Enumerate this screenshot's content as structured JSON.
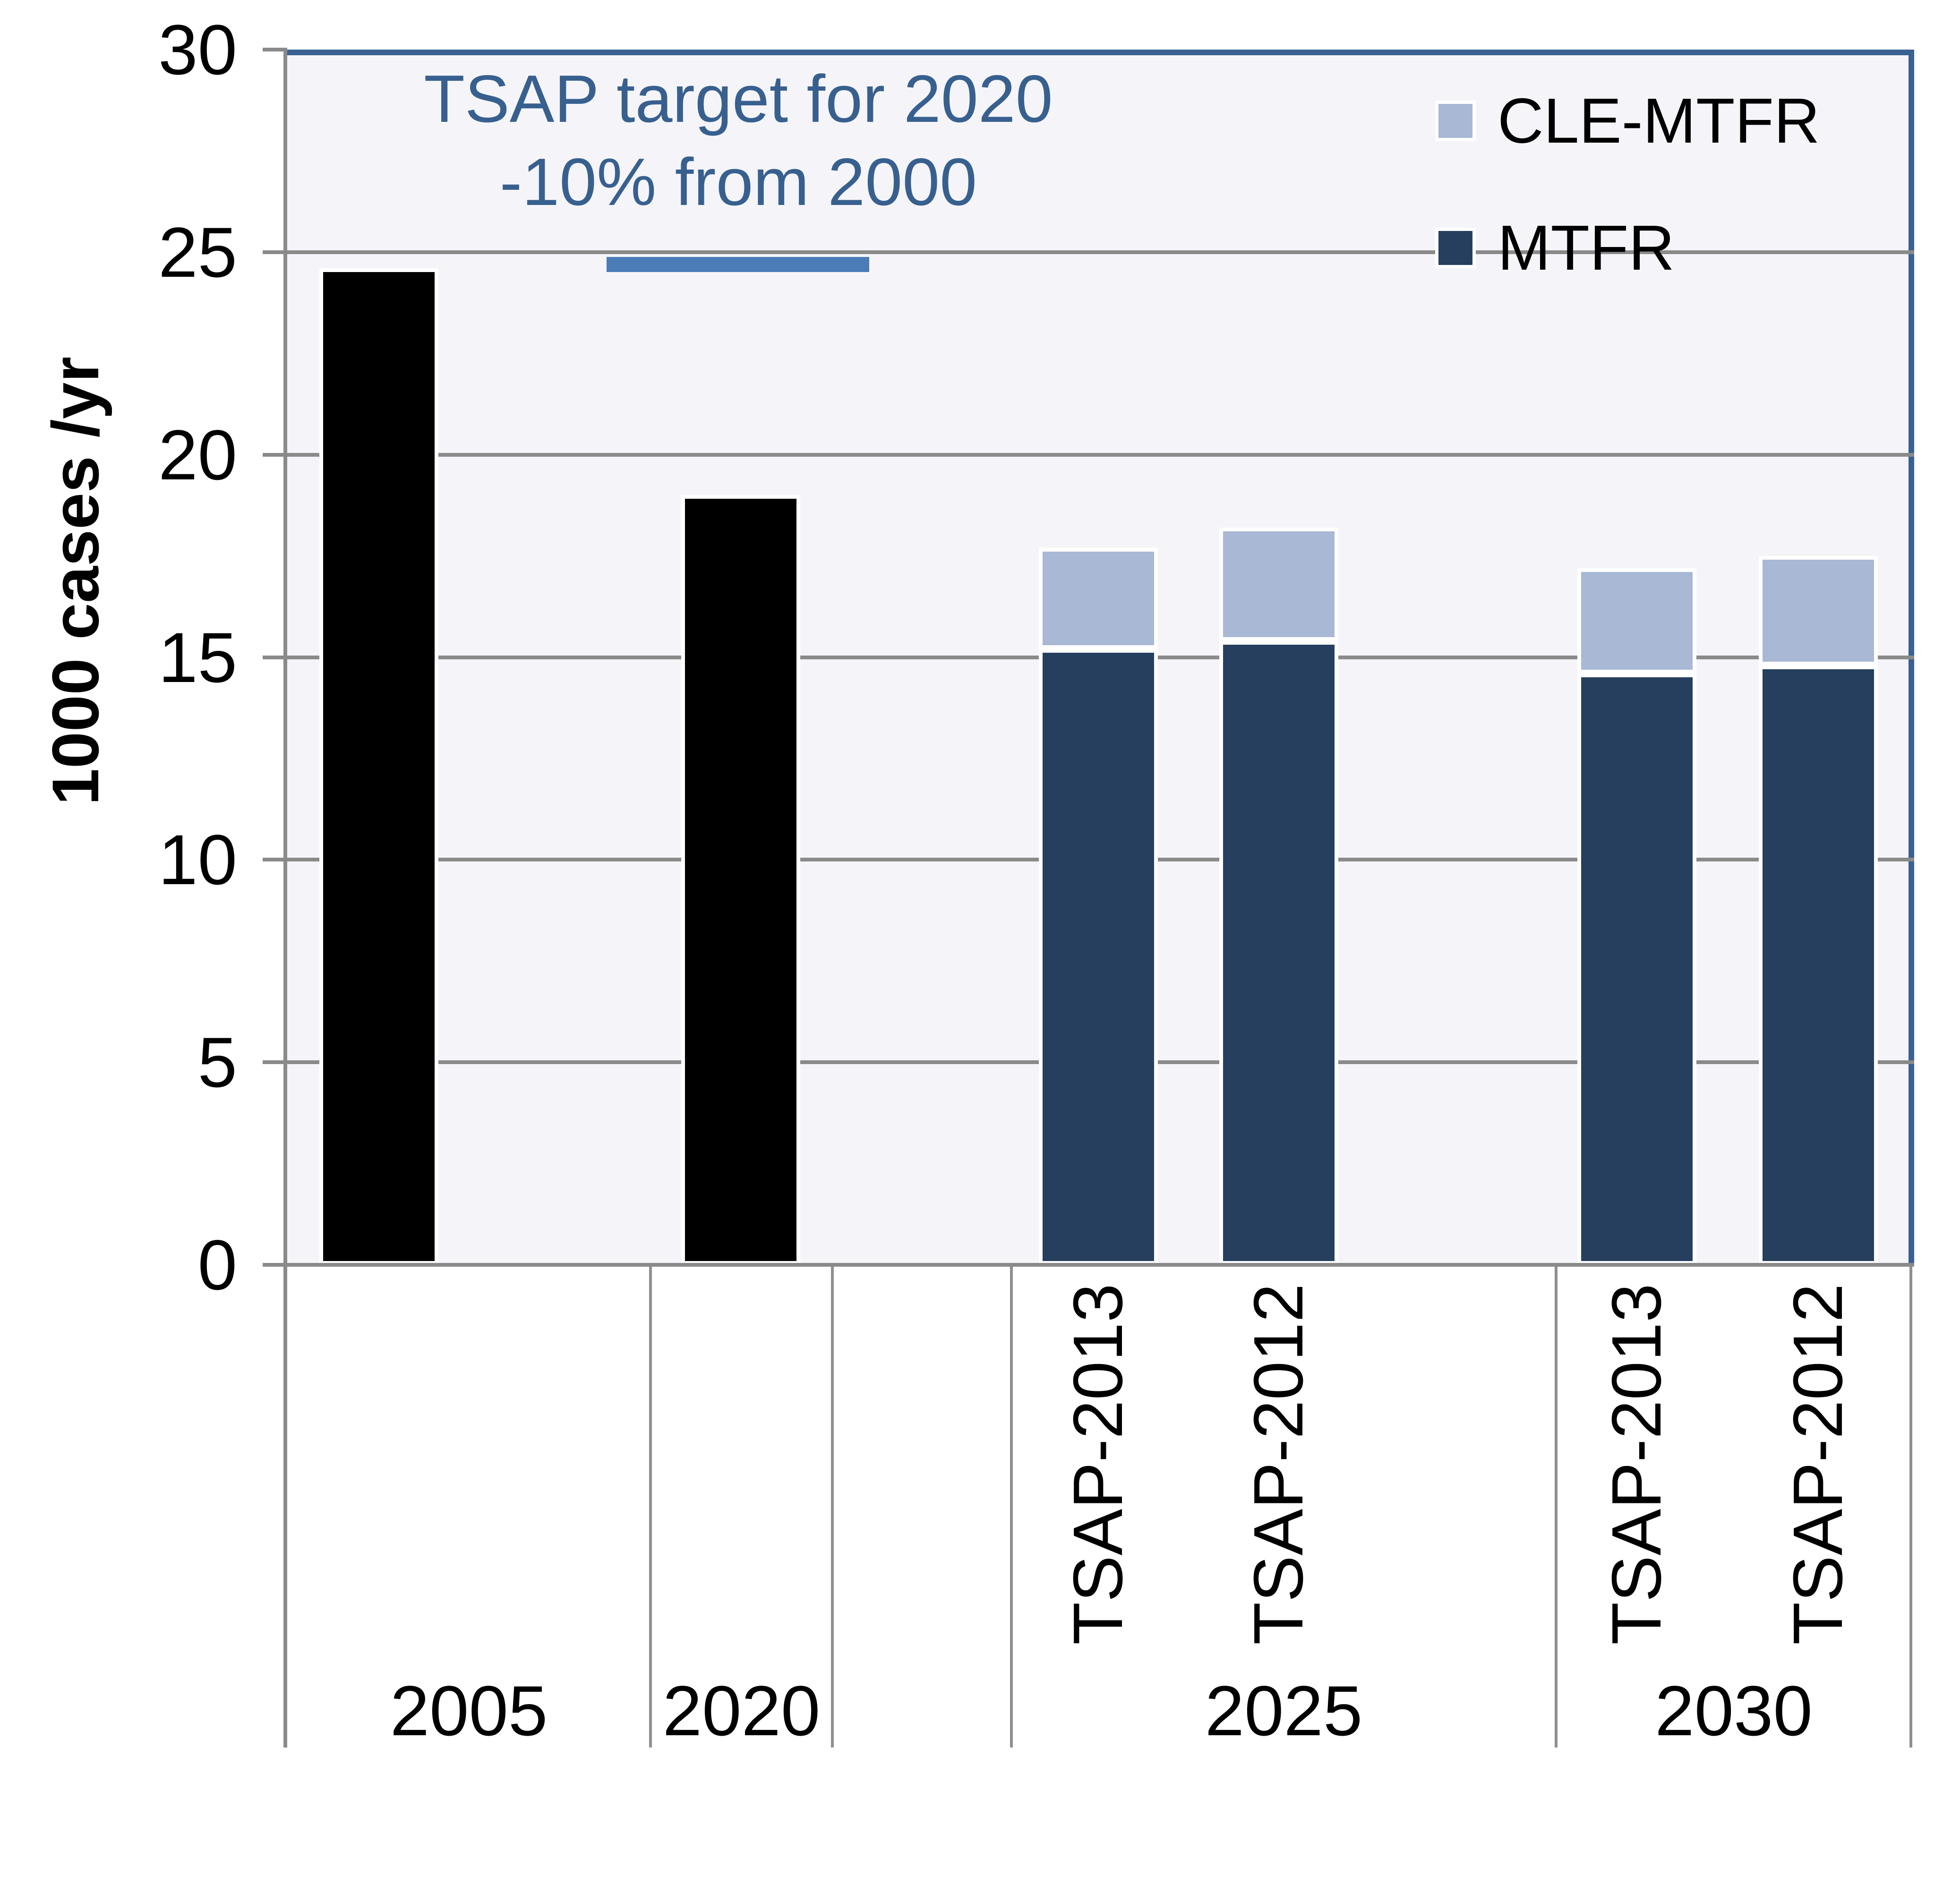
{
  "colors": {
    "black_bar": "#000000",
    "mtfr": "#263F5E",
    "cle_mtfr": "#A8B8D5",
    "target_line": "#4C7CB8",
    "plot_border_blue": "#3A6191",
    "annotation_text": "#38608F",
    "gridline": "#8A8A8A",
    "axis_line": "#8A8A8A",
    "separator": "#8F8F8F",
    "plot_bg": "#F5F5F9",
    "tick_label": "#000000"
  },
  "chart_data": {
    "type": "bar",
    "stacked": true,
    "title": "",
    "ylabel": "1000 cases /yr",
    "xlabel": "",
    "ylim": [
      0,
      30
    ],
    "yticks": [
      0,
      5,
      10,
      15,
      20,
      25,
      30
    ],
    "grid": true,
    "legend_position": "top-right-inside",
    "legend": [
      {
        "label": "CLE-MTFR",
        "color_key": "cle_mtfr"
      },
      {
        "label": "MTFR",
        "color_key": "mtfr"
      }
    ],
    "x_groups": [
      "2005",
      "2020",
      "",
      "2025",
      "2030"
    ],
    "bars": [
      {
        "group": "2005",
        "sublabel": "",
        "style": "black",
        "total": 24.6,
        "segments": [
          {
            "series": "cases",
            "value": 24.6,
            "color_key": "black_bar"
          }
        ]
      },
      {
        "group": "2020",
        "sublabel": "",
        "style": "black",
        "total": 19.0,
        "segments": [
          {
            "series": "cases",
            "value": 19.0,
            "color_key": "black_bar"
          }
        ]
      },
      {
        "group": "2025",
        "sublabel": "TSAP-2013",
        "style": "stacked",
        "total": 17.7,
        "segments": [
          {
            "series": "MTFR",
            "value": 15.2,
            "color_key": "mtfr"
          },
          {
            "series": "CLE-MTFR",
            "value": 2.5,
            "color_key": "cle_mtfr"
          }
        ]
      },
      {
        "group": "2025",
        "sublabel": "TSAP-2012",
        "style": "stacked",
        "total": 18.2,
        "segments": [
          {
            "series": "MTFR",
            "value": 15.4,
            "color_key": "mtfr"
          },
          {
            "series": "CLE-MTFR",
            "value": 2.8,
            "color_key": "cle_mtfr"
          }
        ]
      },
      {
        "group": "2030",
        "sublabel": "TSAP-2013",
        "style": "stacked",
        "total": 17.2,
        "segments": [
          {
            "series": "MTFR",
            "value": 14.6,
            "color_key": "mtfr"
          },
          {
            "series": "CLE-MTFR",
            "value": 2.6,
            "color_key": "cle_mtfr"
          }
        ]
      },
      {
        "group": "2030",
        "sublabel": "TSAP-2012",
        "style": "stacked",
        "total": 17.5,
        "segments": [
          {
            "series": "MTFR",
            "value": 14.8,
            "color_key": "mtfr"
          },
          {
            "series": "CLE-MTFR",
            "value": 2.7,
            "color_key": "cle_mtfr"
          }
        ]
      }
    ],
    "annotation": {
      "text": [
        "TSAP target for 2020",
        "-10% from 2000"
      ],
      "target_value": 24.7,
      "applies_to_group": "2020"
    }
  }
}
